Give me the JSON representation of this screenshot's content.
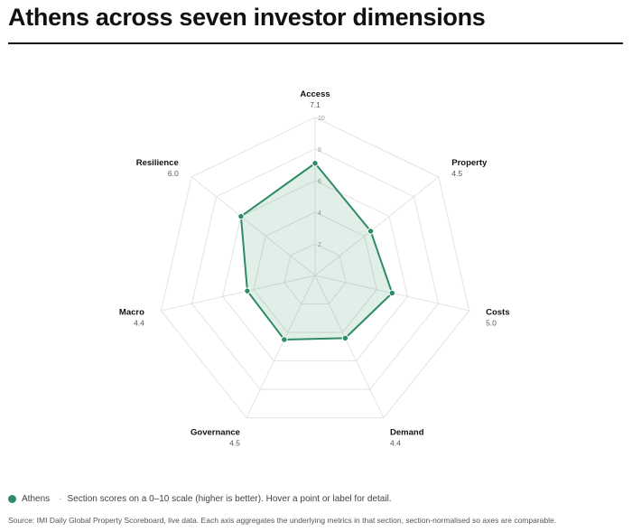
{
  "header": {
    "title": "Athens across seven investor dimensions"
  },
  "chart_data": {
    "type": "radar",
    "axes": [
      "Access",
      "Property",
      "Costs",
      "Demand",
      "Governance",
      "Macro",
      "Resilience"
    ],
    "series": [
      {
        "name": "Athens",
        "values": [
          7.1,
          4.5,
          5.0,
          4.4,
          4.5,
          4.4,
          6.0
        ]
      }
    ],
    "value_labels": [
      "7.1",
      "4.5",
      "5.0",
      "4.4",
      "4.5",
      "4.4",
      "6.0"
    ],
    "rmax": 10,
    "ticks": [
      2,
      4,
      6,
      8,
      10
    ],
    "tick_labels": [
      "2",
      "4",
      "6",
      "8",
      "10"
    ],
    "grid": true,
    "colors": {
      "series": "#2e8b63",
      "fill": "#2e8b63",
      "grid": "#e3e3e3"
    }
  },
  "legend": {
    "series_label": "Athens",
    "note": "Section scores on a 0–10 scale (higher is better). Hover a point or label for detail."
  },
  "footer": {
    "source": "Source: IMI Daily Global Property Scoreboard, live data. Each axis aggregates the underlying metrics in that section, section-normalised so axes are comparable."
  }
}
